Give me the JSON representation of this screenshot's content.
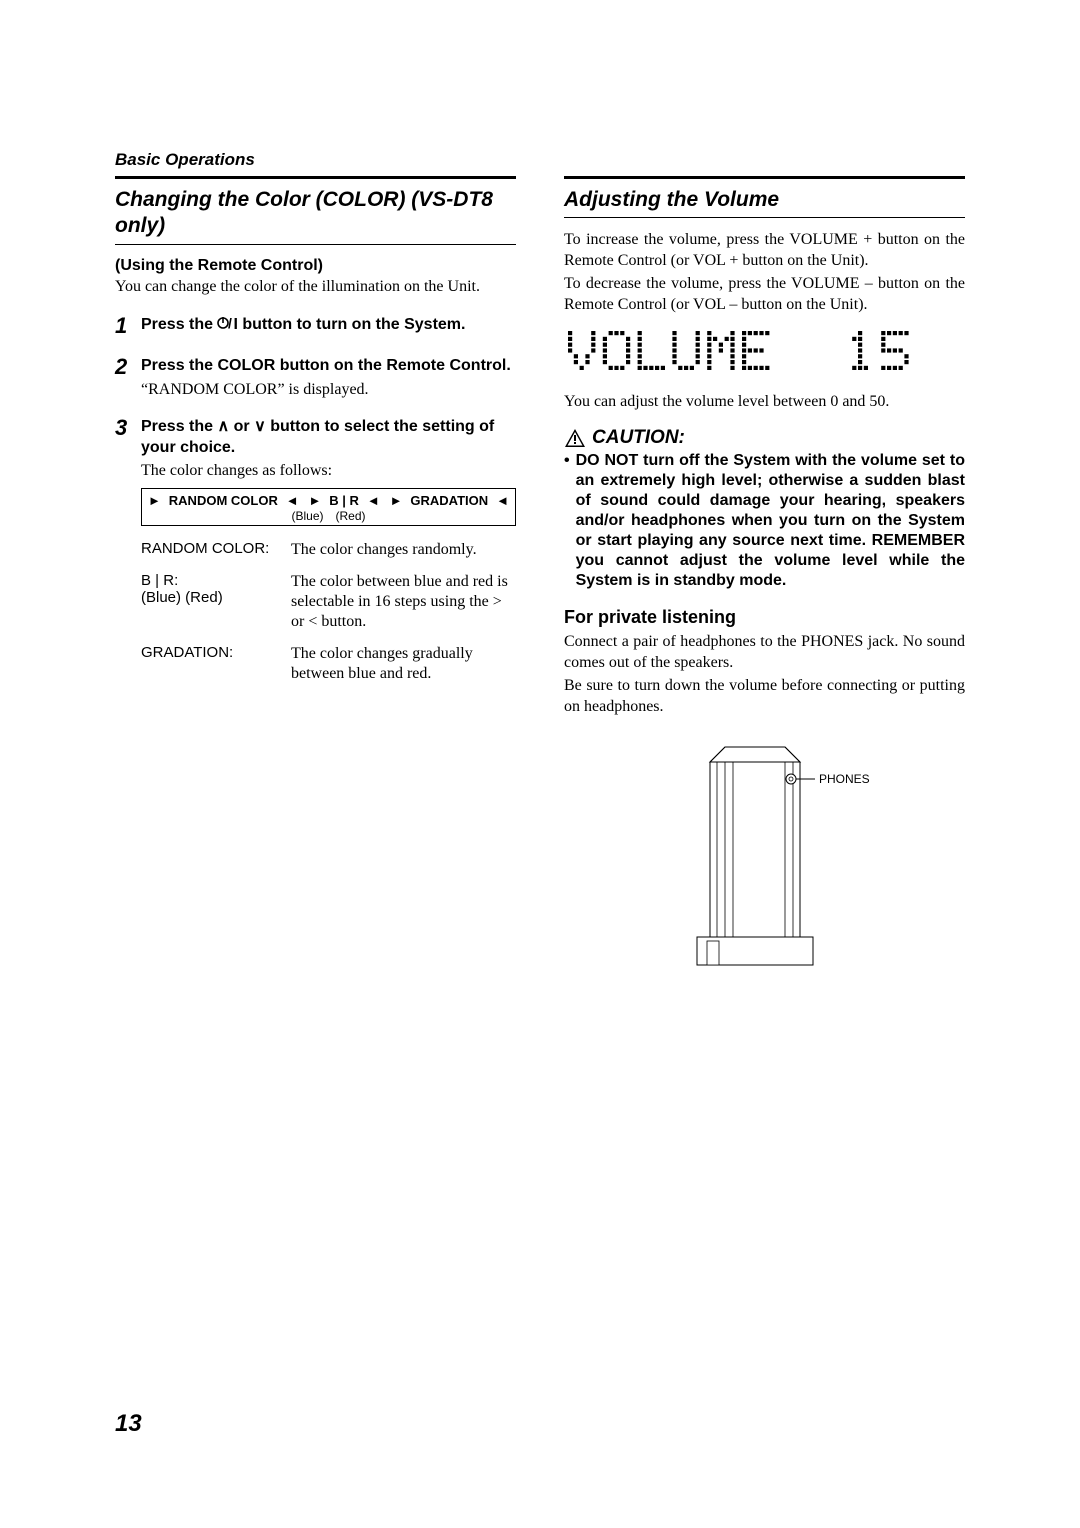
{
  "header": "Basic Operations",
  "page_number": "13",
  "left": {
    "title": "Changing the Color (COLOR) (VS-DT8 only)",
    "using_remote": "(Using the Remote Control)",
    "intro": "You can change the color of the illumination on the Unit.",
    "steps": [
      {
        "num": "1",
        "head_before": "Press the ",
        "head_after": " button to turn on the System."
      },
      {
        "num": "2",
        "head": "Press the COLOR button on the Remote Control.",
        "note": "“RANDOM COLOR” is displayed."
      },
      {
        "num": "3",
        "head": "Press the ∧ or ∨ button to select the setting of your choice.",
        "note": "The color changes as follows:"
      }
    ],
    "flow": {
      "items": [
        "RANDOM COLOR",
        "B | R",
        "GRADATION"
      ],
      "sub": "(Blue) (Red)"
    },
    "defs": [
      {
        "term": "RANDOM COLOR:",
        "desc": "The color changes randomly."
      },
      {
        "term": "B | R:\n(Blue) (Red)",
        "desc": "The color between blue and red is selectable in 16 steps using the > or < button."
      },
      {
        "term": "GRADATION:",
        "desc": "The color changes gradually between blue and red."
      }
    ]
  },
  "right": {
    "title": "Adjusting the Volume",
    "para1": "To increase the volume, press the VOLUME + button on the Remote Control (or VOL + button on the Unit).",
    "para2": "To decrease the volume, press the VOLUME – button on the Remote Control (or VOL – button on the Unit).",
    "display_text": "VOLUME  15",
    "after_display": "You can adjust the volume level between 0 and 50.",
    "caution_label": "CAUTION:",
    "caution_body": "DO NOT turn off the System with the volume set to an extremely high level; otherwise a sudden blast of sound could damage your hearing, speakers and/or headphones when you turn on the System or start playing any source next time. REMEMBER you cannot adjust the volume level while the System is in standby mode.",
    "private_head": "For private listening",
    "private_p1": "Connect a pair of headphones to the PHONES jack. No sound comes out of the speakers.",
    "private_p2": "Be sure to turn down the volume before connecting or putting on headphones.",
    "phones_label": "PHONES"
  },
  "colors": {
    "text": "#000000",
    "bg": "#ffffff"
  }
}
